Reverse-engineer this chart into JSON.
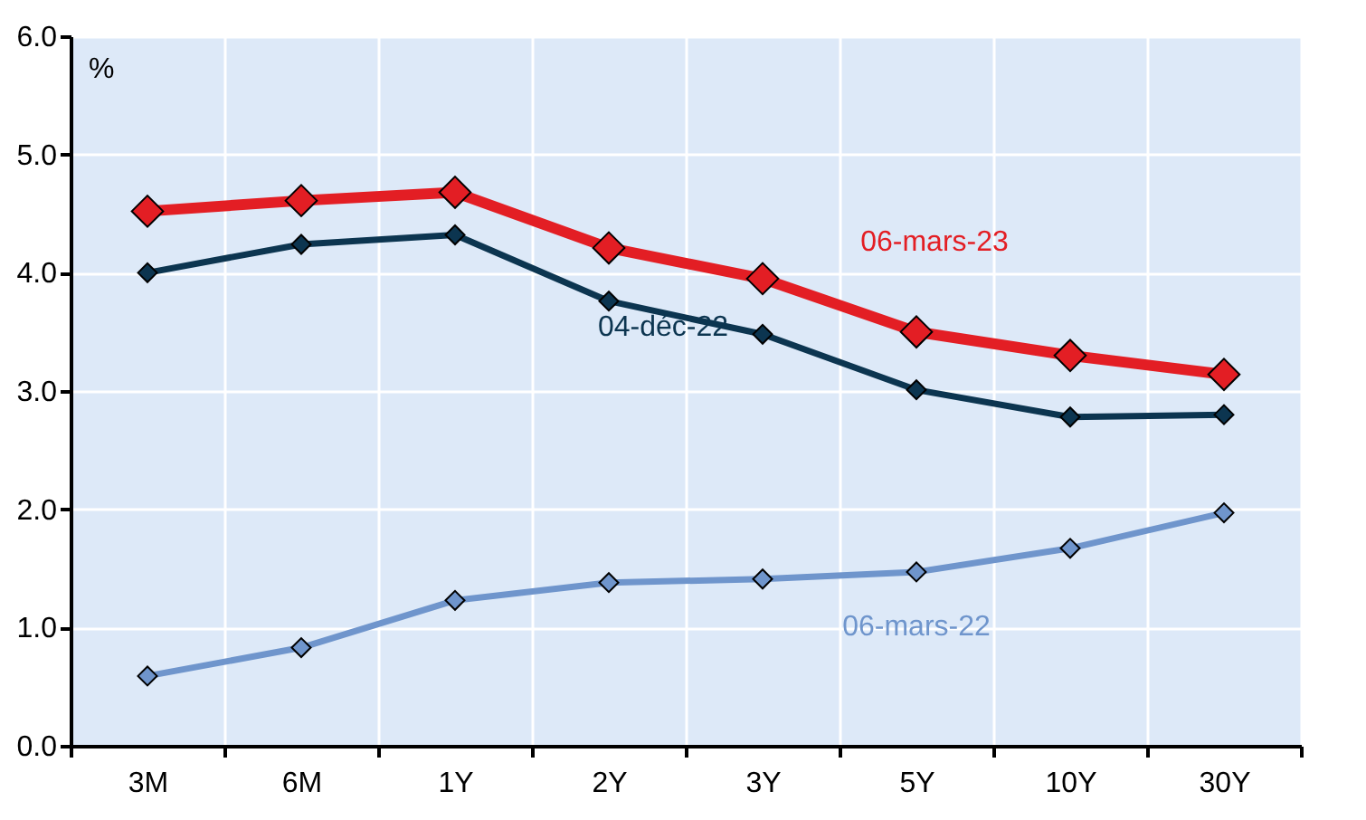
{
  "chart_data": {
    "type": "line",
    "ylabel": "%",
    "categories": [
      "3M",
      "6M",
      "1Y",
      "2Y",
      "3Y",
      "5Y",
      "10Y",
      "30Y"
    ],
    "series": [
      {
        "name": "06-mars-22",
        "color": "#6f95cc",
        "values": [
          0.59,
          0.83,
          1.23,
          1.38,
          1.41,
          1.47,
          1.67,
          1.97
        ]
      },
      {
        "name": "04-déc-22",
        "color": "#0c3550",
        "values": [
          4.0,
          4.24,
          4.32,
          3.76,
          3.48,
          3.01,
          2.78,
          2.8
        ]
      },
      {
        "name": "06-mars-23",
        "color": "#e31e24",
        "values": [
          4.52,
          4.61,
          4.68,
          4.21,
          3.95,
          3.5,
          3.3,
          3.14
        ]
      }
    ],
    "ylim": [
      0,
      6
    ],
    "yticks": [
      {
        "value": 0,
        "label": "0.0"
      },
      {
        "value": 1,
        "label": "1.0"
      },
      {
        "value": 2,
        "label": "2.0"
      },
      {
        "value": 3,
        "label": "3.0"
      },
      {
        "value": 4,
        "label": "4.0"
      },
      {
        "value": 5,
        "label": "5.0"
      },
      {
        "value": 6,
        "label": "6.0"
      }
    ],
    "grid": true,
    "marker": "diamond",
    "line_style": "solid"
  }
}
